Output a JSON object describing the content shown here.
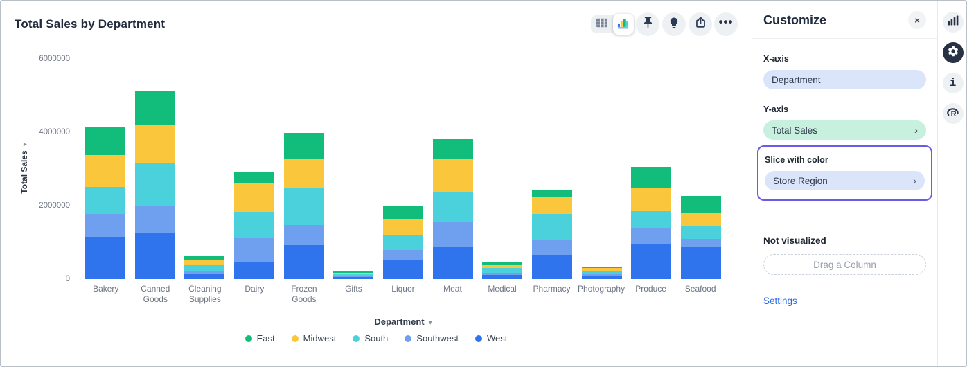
{
  "header": {
    "title": "Total Sales by Department"
  },
  "toolbar": {
    "icons": [
      "table-view",
      "chart-view",
      "pin",
      "lightbulb",
      "share",
      "more"
    ],
    "selected_view": "chart-view"
  },
  "icons": {
    "close": "×",
    "chevron_right": "›",
    "caret_down": "▾",
    "more": "•••",
    "rail": [
      "bar-chart",
      "settings-gear",
      "info",
      "r-logo"
    ]
  },
  "customize_panel": {
    "title": "Customize",
    "sections": {
      "x_axis": {
        "label": "X-axis",
        "value": "Department"
      },
      "y_axis": {
        "label": "Y-axis",
        "value": "Total Sales"
      },
      "slice": {
        "label": "Slice with color",
        "value": "Store Region",
        "highlighted": true,
        "highlight_color": "#6a5be9"
      }
    },
    "not_visualized": {
      "label": "Not visualized",
      "drop_target": "Drag a Column"
    },
    "settings_link": "Settings"
  },
  "chart_data": {
    "type": "bar",
    "stacked": true,
    "title": "Total Sales by Department",
    "xlabel": "Department",
    "ylabel": "Total Sales",
    "ylim": [
      0,
      6000000
    ],
    "y_ticks": [
      "0",
      "2000000",
      "4000000",
      "6000000"
    ],
    "grid": false,
    "legend_position": "bottom",
    "categories": [
      "Bakery",
      "Canned Goods",
      "Cleaning Supplies",
      "Dairy",
      "Frozen Goods",
      "Gifts",
      "Liquor",
      "Meat",
      "Medical",
      "Pharmacy",
      "Photography",
      "Produce",
      "Seafood"
    ],
    "series": [
      {
        "name": "East",
        "color": "#12bd7c",
        "values": [
          770000,
          920000,
          130000,
          280000,
          720000,
          30000,
          350000,
          520000,
          60000,
          190000,
          40000,
          580000,
          460000
        ]
      },
      {
        "name": "Midwest",
        "color": "#fac63c",
        "values": [
          870000,
          1060000,
          130000,
          790000,
          770000,
          40000,
          460000,
          910000,
          100000,
          460000,
          90000,
          600000,
          360000
        ]
      },
      {
        "name": "South",
        "color": "#4ad1dc",
        "values": [
          740000,
          1150000,
          150000,
          690000,
          1010000,
          40000,
          390000,
          830000,
          130000,
          710000,
          75000,
          470000,
          360000
        ]
      },
      {
        "name": "Southwest",
        "color": "#6fa0f0",
        "values": [
          620000,
          740000,
          80000,
          660000,
          550000,
          40000,
          280000,
          660000,
          60000,
          390000,
          55000,
          440000,
          230000
        ]
      },
      {
        "name": "West",
        "color": "#2f74ec",
        "values": [
          1150000,
          1270000,
          150000,
          470000,
          920000,
          60000,
          500000,
          880000,
          110000,
          660000,
          80000,
          970000,
          860000
        ]
      }
    ]
  }
}
